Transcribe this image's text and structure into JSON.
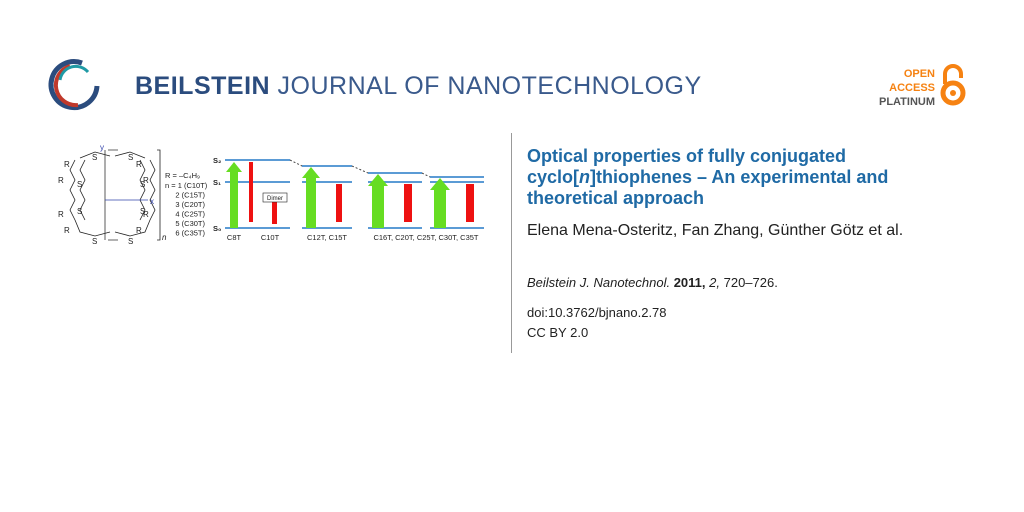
{
  "header": {
    "brand_bold": "BEILSTEIN",
    "brand_light": "JOURNAL OF NANOTECHNOLOGY",
    "badge": [
      "OPEN",
      "ACCESS",
      "PLATINUM"
    ]
  },
  "graphic": {
    "atom_r": "R",
    "atom_s": "S",
    "axis_x": "x",
    "axis_y": "y",
    "repeat": "n",
    "substituent": "R = –C₄H₉",
    "series": [
      "n = 1 (C10T)",
      "2 (C15T)",
      "3 (C20T)",
      "4 (C25T)",
      "5 (C30T)",
      "6 (C35T)"
    ],
    "states": [
      "S₂",
      "S₁",
      "S₀"
    ],
    "dimer": "Dimer",
    "groups": [
      "C8T",
      "C10T",
      "C12T, C15T",
      "C16T, C20T, C25T, C30T, C35T"
    ]
  },
  "article": {
    "title": [
      {
        "text": "Optical properties of fully conjugated cyclo[",
        "style": "normal"
      },
      {
        "text": "n",
        "style": "italic"
      },
      {
        "text": "]thiophenes – An experimental and theoretical approach",
        "style": "normal"
      }
    ],
    "authors": "Elena Mena-Osteritz, Fan Zhang, Günther Götz et al.",
    "citation": [
      {
        "text": "Beilstein J. Nanotechnol.",
        "style": "italic"
      },
      {
        "text": " 2011,",
        "style": "bold"
      },
      {
        "text": " 2,",
        "style": "italic"
      },
      {
        "text": " 720–726.",
        "style": "normal"
      }
    ],
    "doi": "doi:10.3762/bjnano.2.78",
    "license": "CC BY 2.0"
  }
}
